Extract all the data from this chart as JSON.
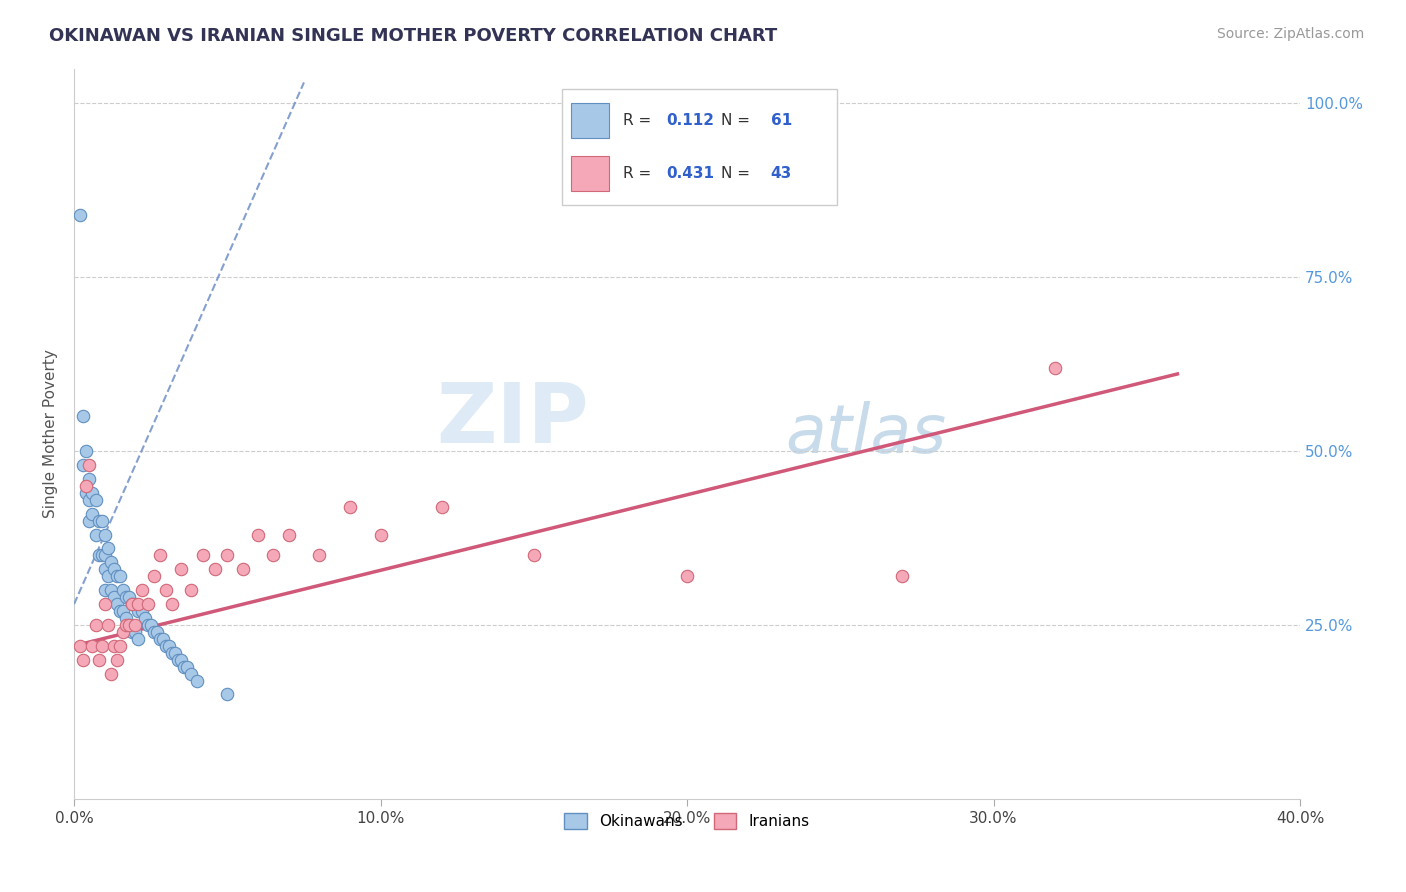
{
  "title": "OKINAWAN VS IRANIAN SINGLE MOTHER POVERTY CORRELATION CHART",
  "source": "Source: ZipAtlas.com",
  "ylabel": "Single Mother Poverty",
  "xlim": [
    0.0,
    0.4
  ],
  "ylim": [
    0.0,
    1.05
  ],
  "xtick_labels": [
    "0.0%",
    "10.0%",
    "20.0%",
    "30.0%",
    "40.0%"
  ],
  "xtick_vals": [
    0.0,
    0.1,
    0.2,
    0.3,
    0.4
  ],
  "ytick_labels": [
    "25.0%",
    "50.0%",
    "75.0%",
    "100.0%"
  ],
  "ytick_vals": [
    0.25,
    0.5,
    0.75,
    1.0
  ],
  "okinawan_color": "#a8c8e8",
  "iranian_color": "#f5a8b8",
  "okinawan_edge": "#6090c0",
  "iranian_edge": "#d06878",
  "regression_okinawan_color": "#7090c8",
  "regression_iranian_color": "#d05878",
  "watermark_zip": "ZIP",
  "watermark_atlas": "atlas",
  "legend_R_okinawan": "0.112",
  "legend_N_okinawan": "61",
  "legend_R_iranian": "0.431",
  "legend_N_iranian": "43",
  "okinawan_x": [
    0.002,
    0.003,
    0.003,
    0.004,
    0.004,
    0.005,
    0.005,
    0.005,
    0.006,
    0.006,
    0.007,
    0.007,
    0.008,
    0.008,
    0.009,
    0.009,
    0.01,
    0.01,
    0.01,
    0.01,
    0.011,
    0.011,
    0.012,
    0.012,
    0.013,
    0.013,
    0.014,
    0.014,
    0.015,
    0.015,
    0.016,
    0.016,
    0.017,
    0.017,
    0.018,
    0.018,
    0.019,
    0.019,
    0.02,
    0.02,
    0.021,
    0.021,
    0.022,
    0.023,
    0.024,
    0.025,
    0.026,
    0.027,
    0.028,
    0.029,
    0.03,
    0.031,
    0.032,
    0.033,
    0.034,
    0.035,
    0.036,
    0.037,
    0.038,
    0.04,
    0.05
  ],
  "okinawan_y": [
    0.84,
    0.55,
    0.48,
    0.5,
    0.44,
    0.46,
    0.43,
    0.4,
    0.44,
    0.41,
    0.43,
    0.38,
    0.4,
    0.35,
    0.4,
    0.35,
    0.38,
    0.35,
    0.33,
    0.3,
    0.36,
    0.32,
    0.34,
    0.3,
    0.33,
    0.29,
    0.32,
    0.28,
    0.32,
    0.27,
    0.3,
    0.27,
    0.29,
    0.26,
    0.29,
    0.25,
    0.28,
    0.24,
    0.28,
    0.24,
    0.27,
    0.23,
    0.27,
    0.26,
    0.25,
    0.25,
    0.24,
    0.24,
    0.23,
    0.23,
    0.22,
    0.22,
    0.21,
    0.21,
    0.2,
    0.2,
    0.19,
    0.19,
    0.18,
    0.17,
    0.15
  ],
  "iranian_x": [
    0.002,
    0.003,
    0.004,
    0.005,
    0.006,
    0.007,
    0.008,
    0.009,
    0.01,
    0.011,
    0.012,
    0.013,
    0.014,
    0.015,
    0.016,
    0.017,
    0.018,
    0.019,
    0.02,
    0.021,
    0.022,
    0.024,
    0.026,
    0.028,
    0.03,
    0.032,
    0.035,
    0.038,
    0.042,
    0.046,
    0.05,
    0.055,
    0.06,
    0.065,
    0.07,
    0.08,
    0.09,
    0.1,
    0.12,
    0.15,
    0.2,
    0.27,
    0.32
  ],
  "iranian_y": [
    0.22,
    0.2,
    0.45,
    0.48,
    0.22,
    0.25,
    0.2,
    0.22,
    0.28,
    0.25,
    0.18,
    0.22,
    0.2,
    0.22,
    0.24,
    0.25,
    0.25,
    0.28,
    0.25,
    0.28,
    0.3,
    0.28,
    0.32,
    0.35,
    0.3,
    0.28,
    0.33,
    0.3,
    0.35,
    0.33,
    0.35,
    0.33,
    0.38,
    0.35,
    0.38,
    0.35,
    0.42,
    0.38,
    0.42,
    0.35,
    0.32,
    0.32,
    0.62
  ]
}
